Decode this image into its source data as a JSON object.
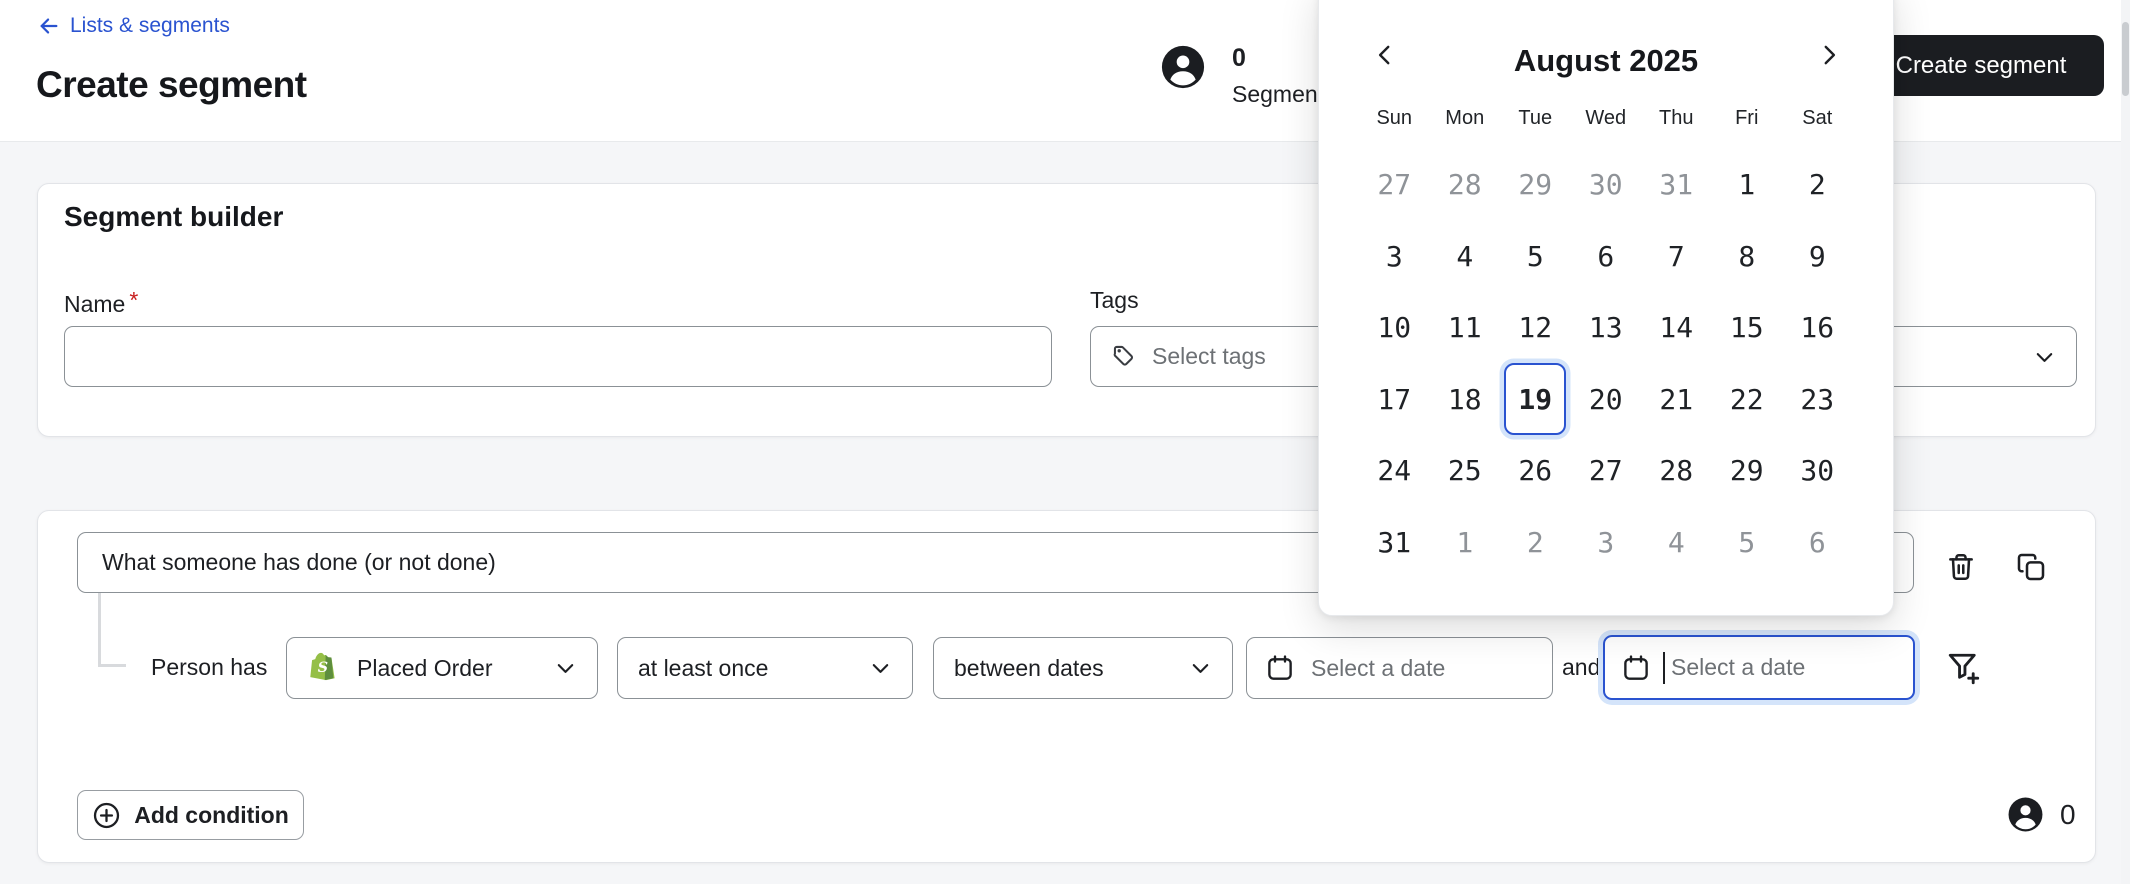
{
  "header": {
    "breadcrumb": "Lists & segments",
    "title": "Create segment",
    "profile_count": "0",
    "profile_label": "Segment p",
    "create_button_label": "Create segment"
  },
  "builder_card": {
    "title": "Segment builder",
    "name_label": "Name",
    "required_asterisk": "*",
    "name_value": "",
    "tags_label": "Tags",
    "tags_placeholder": "Select tags"
  },
  "condition_card": {
    "condition_type": "What someone has done (or not done)",
    "subject_label": "Person has",
    "metric_value": "Placed Order",
    "frequency_value": "at least once",
    "timeframe_value": "between dates",
    "start_date_placeholder": "Select a date",
    "and_label": "and",
    "end_date_placeholder": "Select a date",
    "add_condition_label": "Add condition",
    "preview_count": "0"
  },
  "calendar": {
    "title": "August 2025",
    "day_names": [
      "Sun",
      "Mon",
      "Tue",
      "Wed",
      "Thu",
      "Fri",
      "Sat"
    ],
    "selected_day": "19",
    "weeks": [
      [
        {
          "d": "27",
          "m": 1
        },
        {
          "d": "28",
          "m": 1
        },
        {
          "d": "29",
          "m": 1
        },
        {
          "d": "30",
          "m": 1
        },
        {
          "d": "31",
          "m": 1
        },
        {
          "d": "1"
        },
        {
          "d": "2"
        }
      ],
      [
        {
          "d": "3"
        },
        {
          "d": "4"
        },
        {
          "d": "5"
        },
        {
          "d": "6"
        },
        {
          "d": "7"
        },
        {
          "d": "8"
        },
        {
          "d": "9"
        }
      ],
      [
        {
          "d": "10"
        },
        {
          "d": "11"
        },
        {
          "d": "12"
        },
        {
          "d": "13"
        },
        {
          "d": "14"
        },
        {
          "d": "15"
        },
        {
          "d": "16"
        }
      ],
      [
        {
          "d": "17"
        },
        {
          "d": "18"
        },
        {
          "d": "19",
          "s": 1
        },
        {
          "d": "20"
        },
        {
          "d": "21"
        },
        {
          "d": "22"
        },
        {
          "d": "23"
        }
      ],
      [
        {
          "d": "24"
        },
        {
          "d": "25"
        },
        {
          "d": "26"
        },
        {
          "d": "27"
        },
        {
          "d": "28"
        },
        {
          "d": "29"
        },
        {
          "d": "30"
        }
      ],
      [
        {
          "d": "31"
        },
        {
          "d": "1",
          "m": 1
        },
        {
          "d": "2",
          "m": 1
        },
        {
          "d": "3",
          "m": 1
        },
        {
          "d": "4",
          "m": 1
        },
        {
          "d": "5",
          "m": 1
        },
        {
          "d": "6",
          "m": 1
        }
      ]
    ]
  },
  "icons": {
    "back": "arrow-left",
    "profile": "person-circle",
    "tags": "tag",
    "dropdown": "chevron-down",
    "date": "calendar",
    "delete": "trash",
    "duplicate": "copy",
    "filter": "filter-plus",
    "add": "plus-circle",
    "prev_month": "chevron-left",
    "next_month": "chevron-right",
    "metric_source": "shopify-bag"
  },
  "colors": {
    "accent_blue": "#2a53d0",
    "button_dark": "#1b1d21",
    "focus_ring": "#d4e4fa",
    "muted_text": "#6d7175",
    "muted_day": "#8f9398",
    "border_input": "#8b9196",
    "border_card": "#e2e4e8",
    "page_bg": "#f5f6f8",
    "shopify_green": "#95bf47",
    "required_red": "#c81e1e"
  }
}
